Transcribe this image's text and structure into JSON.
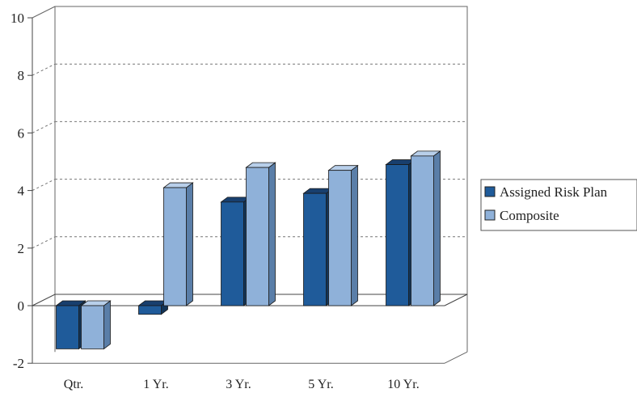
{
  "chart_data": {
    "type": "bar",
    "categories": [
      "Qtr.",
      "1 Yr.",
      "3 Yr.",
      "5 Yr.",
      "10 Yr."
    ],
    "series": [
      {
        "name": "Assigned Risk Plan",
        "values": [
          -1.5,
          -0.3,
          3.6,
          3.9,
          4.9
        ]
      },
      {
        "name": "Composite",
        "values": [
          -1.5,
          4.1,
          4.8,
          4.7,
          5.2
        ]
      }
    ],
    "ylim": [
      -2,
      10
    ],
    "yticks": [
      "10",
      "8",
      "6",
      "4",
      "2",
      "0",
      "-2"
    ],
    "ytick_values": [
      10,
      8,
      6,
      4,
      2,
      0,
      -2
    ],
    "legend_position": "right",
    "grid": true
  },
  "colors": {
    "series1_front": "#1f5b9a",
    "series1_top": "#183f6e",
    "series1_side": "#123457",
    "series2_front": "#8fb1d9",
    "series2_top": "#b8cfea",
    "series2_side": "#5a7ea8"
  }
}
